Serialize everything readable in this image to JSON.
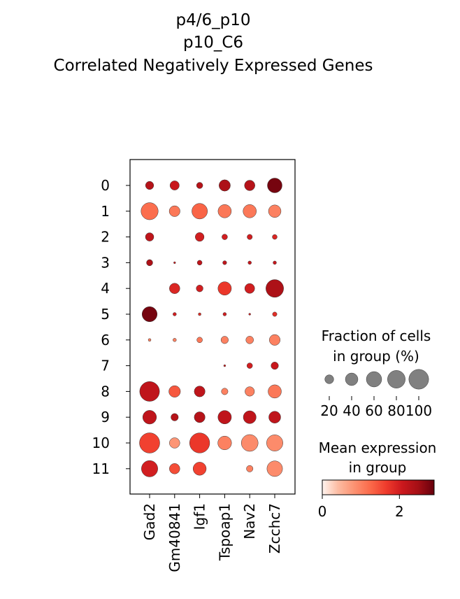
{
  "chart_data": {
    "type": "dotplot",
    "title_lines": [
      "p4/6_p10",
      "p10_C6",
      "Correlated Negatively Expressed Genes"
    ],
    "genes": [
      "Gad2",
      "Gm40841",
      "Igf1",
      "Tspoap1",
      "Nav2",
      "Zcchc7"
    ],
    "groups": [
      "0",
      "1",
      "2",
      "3",
      "4",
      "5",
      "6",
      "7",
      "8",
      "9",
      "10",
      "11"
    ],
    "fraction_pct": [
      [
        17,
        22,
        10,
        33,
        28,
        55
      ],
      [
        75,
        30,
        62,
        45,
        45,
        40
      ],
      [
        18,
        0,
        20,
        8,
        7,
        6
      ],
      [
        10,
        1,
        6,
        4,
        3,
        3
      ],
      [
        0,
        28,
        12,
        46,
        25,
        80
      ],
      [
        58,
        3,
        2,
        3,
        1,
        5
      ],
      [
        2,
        3,
        8,
        14,
        15,
        30
      ],
      [
        0,
        0,
        0,
        1,
        8,
        14
      ],
      [
        100,
        34,
        30,
        11,
        23,
        45
      ],
      [
        48,
        14,
        30,
        46,
        42,
        36
      ],
      [
        105,
        28,
        103,
        48,
        72,
        68
      ],
      [
        68,
        28,
        44,
        0,
        11,
        62
      ]
    ],
    "mean_expression": [
      [
        2.3,
        2.1,
        2.3,
        2.4,
        2.3,
        2.8
      ],
      [
        1.2,
        1.1,
        1.3,
        1.1,
        1.1,
        1.0
      ],
      [
        2.2,
        0,
        2.0,
        2.0,
        2.0,
        1.9
      ],
      [
        2.4,
        2.0,
        2.2,
        2.2,
        2.1,
        2.1
      ],
      [
        0,
        1.9,
        2.0,
        1.7,
        2.0,
        2.4
      ],
      [
        2.8,
        2.0,
        1.8,
        2.0,
        2.0,
        1.8
      ],
      [
        1.0,
        1.0,
        1.1,
        1.0,
        1.0,
        1.0
      ],
      [
        0,
        0,
        0,
        2.0,
        2.0,
        2.1
      ],
      [
        2.2,
        1.4,
        2.2,
        1.0,
        1.0,
        1.1
      ],
      [
        2.2,
        2.3,
        2.3,
        2.2,
        2.2,
        2.2
      ],
      [
        1.6,
        0.8,
        1.7,
        1.0,
        0.9,
        0.9
      ],
      [
        2.0,
        1.5,
        1.6,
        0,
        1.0,
        0.9
      ]
    ],
    "size_legend": {
      "title_lines": [
        "Fraction of cells",
        "in group (%)"
      ],
      "values": [
        20,
        40,
        60,
        80,
        100
      ],
      "tick_labels": [
        "20",
        "40",
        "60",
        "80",
        "100"
      ]
    },
    "color_legend": {
      "title_lines": [
        "Mean expression",
        "in group"
      ],
      "vmin": 0,
      "vmax": 2.9,
      "tick_values": [
        0,
        2
      ],
      "tick_labels": [
        "0",
        "2"
      ],
      "colormap": "Reds"
    },
    "colors": {
      "stops": [
        "#fff5f0",
        "#fcbba1",
        "#fc9272",
        "#fb6a4a",
        "#ef3b2c",
        "#cb181d",
        "#a50f15",
        "#67000d"
      ],
      "size_legend_dot": "#808080"
    }
  }
}
